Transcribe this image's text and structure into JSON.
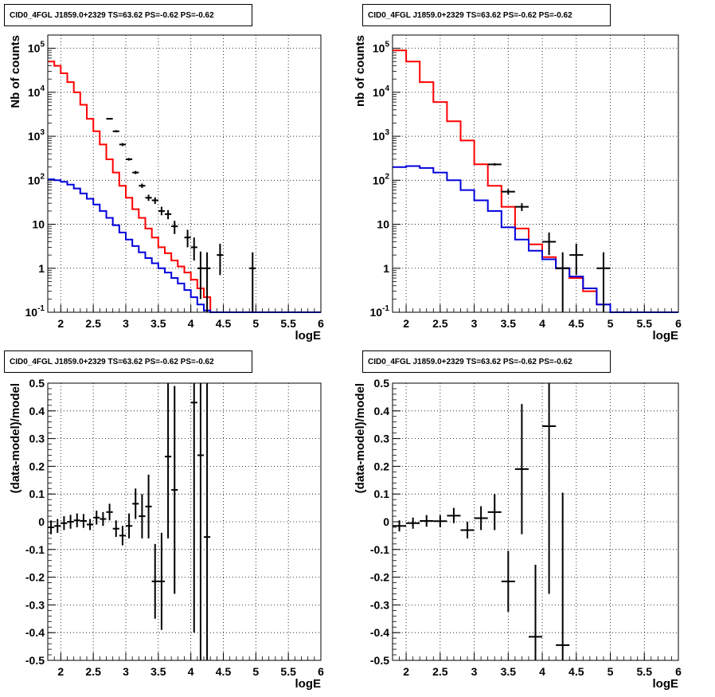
{
  "chart_data": [
    {
      "type": "step-line-errorbars",
      "title": "CID0_4FGL J1859.0+2329 TS=63.62 PS=-0.62 PS=-0.62",
      "xlabel": "logE",
      "ylabel": "Nb of counts",
      "xlim": [
        1.8,
        6
      ],
      "ylim": [
        0.1,
        200000
      ],
      "ylog": true,
      "grid": true,
      "xticks": [
        "2",
        "2.5",
        "3",
        "3.5",
        "4",
        "4.5",
        "5",
        "5.5",
        "6"
      ],
      "yticks": [
        "10^-1",
        "1",
        "10",
        "10^2",
        "10^3",
        "10^4",
        "10^5"
      ],
      "series": [
        {
          "color": "#ff0000",
          "kind": "step",
          "bin_width": 0.1,
          "x_start": 1.8,
          "values": [
            50000,
            40000,
            27000,
            17000,
            10000,
            5200,
            2500,
            1300,
            650,
            300,
            150,
            75,
            40,
            22,
            14,
            8,
            5,
            3,
            2.2,
            1.5,
            1.1,
            0.8,
            0.55,
            0.35,
            0.22,
            0.1,
            0.1,
            0.1,
            0.1,
            0.1,
            0.1,
            0.1,
            0.1,
            0.1,
            0.1,
            0.1,
            0.1,
            0.1,
            0.1,
            0.1,
            0.1,
            0.1
          ]
        },
        {
          "color": "#0000dd",
          "kind": "step",
          "bin_width": 0.1,
          "x_start": 1.8,
          "values": [
            105,
            100,
            92,
            80,
            65,
            50,
            38,
            28,
            20,
            14,
            9.5,
            6.5,
            4.5,
            3.2,
            2.3,
            1.7,
            1.3,
            1.0,
            0.8,
            0.6,
            0.45,
            0.32,
            0.22,
            0.15,
            0.11,
            0.1,
            0.1,
            0.1,
            0.1,
            0.1,
            0.1,
            0.1,
            0.1,
            0.1,
            0.1,
            0.1,
            0.1,
            0.1,
            0.1,
            0.1,
            0.1,
            0.1
          ]
        },
        {
          "color": "#000000",
          "kind": "errorbar",
          "half_width": 0.05,
          "points": [
            {
              "x": 2.75,
              "y": 2500,
              "lo": 2400,
              "hi": 2600
            },
            {
              "x": 2.85,
              "y": 1300,
              "lo": 1230,
              "hi": 1370
            },
            {
              "x": 2.95,
              "y": 650,
              "lo": 600,
              "hi": 700
            },
            {
              "x": 3.05,
              "y": 300,
              "lo": 280,
              "hi": 320
            },
            {
              "x": 3.15,
              "y": 150,
              "lo": 138,
              "hi": 163
            },
            {
              "x": 3.25,
              "y": 75,
              "lo": 67,
              "hi": 84
            },
            {
              "x": 3.35,
              "y": 40,
              "lo": 34,
              "hi": 47
            },
            {
              "x": 3.45,
              "y": 35,
              "lo": 29,
              "hi": 41
            },
            {
              "x": 3.55,
              "y": 20,
              "lo": 16,
              "hi": 25
            },
            {
              "x": 3.65,
              "y": 17,
              "lo": 13,
              "hi": 21
            },
            {
              "x": 3.75,
              "y": 9,
              "lo": 6,
              "hi": 12
            },
            {
              "x": 3.95,
              "y": 5,
              "lo": 3,
              "hi": 7.5
            },
            {
              "x": 4.05,
              "y": 3,
              "lo": 1.5,
              "hi": 5
            },
            {
              "x": 4.15,
              "y": 1,
              "lo": 0.2,
              "hi": 2.4
            },
            {
              "x": 4.25,
              "y": 1,
              "lo": 0.1,
              "hi": 2.3
            },
            {
              "x": 4.45,
              "y": 2,
              "lo": 0.7,
              "hi": 3.6
            },
            {
              "x": 4.95,
              "y": 1,
              "lo": 0.1,
              "hi": 2.3
            }
          ]
        }
      ]
    },
    {
      "type": "step-line-errorbars",
      "title": "CID0_4FGL J1859.0+2329 TS=63.62 PS=-0.62 PS=-0.62",
      "xlabel": "logE",
      "ylabel": "nb of counts",
      "xlim": [
        1.8,
        6
      ],
      "ylim": [
        0.1,
        200000
      ],
      "ylog": true,
      "grid": true,
      "xticks": [
        "2",
        "2.5",
        "3",
        "3.5",
        "4",
        "4.5",
        "5",
        "5.5",
        "6"
      ],
      "yticks": [
        "10^-1",
        "1",
        "10",
        "10^2",
        "10^3",
        "10^4",
        "10^5"
      ],
      "series": [
        {
          "color": "#ff0000",
          "kind": "step",
          "bin_width": 0.2,
          "x_start": 1.8,
          "values": [
            90000,
            50000,
            17000,
            6000,
            2200,
            800,
            230,
            75,
            25,
            8,
            3.5,
            1.8,
            1.0,
            0.6,
            0.3,
            0.15,
            0.1,
            0.1,
            0.1,
            0.1,
            0.1
          ]
        },
        {
          "color": "#0000dd",
          "kind": "step",
          "bin_width": 0.2,
          "x_start": 1.8,
          "values": [
            200,
            210,
            190,
            150,
            100,
            60,
            35,
            20,
            8.5,
            4.5,
            2.5,
            1.6,
            1.0,
            0.65,
            0.35,
            0.15,
            0.1,
            0.1,
            0.1,
            0.1,
            0.1
          ]
        },
        {
          "color": "#000000",
          "kind": "errorbar",
          "half_width": 0.1,
          "points": [
            {
              "x": 3.3,
              "y": 230,
              "lo": 215,
              "hi": 245
            },
            {
              "x": 3.5,
              "y": 55,
              "lo": 48,
              "hi": 63
            },
            {
              "x": 3.7,
              "y": 25,
              "lo": 20,
              "hi": 30
            },
            {
              "x": 4.1,
              "y": 4,
              "lo": 2,
              "hi": 6.5
            },
            {
              "x": 4.3,
              "y": 1,
              "lo": 0.1,
              "hi": 2.3
            },
            {
              "x": 4.5,
              "y": 2,
              "lo": 0.7,
              "hi": 3.6
            },
            {
              "x": 4.9,
              "y": 1,
              "lo": 0.1,
              "hi": 2.3
            }
          ]
        }
      ]
    },
    {
      "type": "errorbar",
      "title": "CID0_4FGL J1859.0+2329 TS=63.62 PS=-0.62 PS=-0.62",
      "xlabel": "logE",
      "ylabel": "(data-model)/model",
      "xlim": [
        1.8,
        6
      ],
      "ylim": [
        -0.5,
        0.5
      ],
      "ylog": false,
      "grid": true,
      "xticks": [
        "2",
        "2.5",
        "3",
        "3.5",
        "4",
        "4.5",
        "5",
        "5.5",
        "6"
      ],
      "yticks": [
        "-0.5",
        "-0.4",
        "-0.3",
        "-0.2",
        "-0.1",
        "0",
        "0.1",
        "0.2",
        "0.3",
        "0.4",
        "0.5"
      ],
      "series": [
        {
          "color": "#000000",
          "kind": "errorbar",
          "half_width": 0.05,
          "points": [
            {
              "x": 1.85,
              "y": -0.02,
              "lo": -0.045,
              "hi": 0.005
            },
            {
              "x": 1.95,
              "y": -0.015,
              "lo": -0.04,
              "hi": 0.01
            },
            {
              "x": 2.05,
              "y": -0.005,
              "lo": -0.03,
              "hi": 0.02
            },
            {
              "x": 2.15,
              "y": 0.0,
              "lo": -0.025,
              "hi": 0.025
            },
            {
              "x": 2.25,
              "y": 0.005,
              "lo": -0.02,
              "hi": 0.03
            },
            {
              "x": 2.35,
              "y": 0.003,
              "lo": -0.022,
              "hi": 0.028
            },
            {
              "x": 2.45,
              "y": -0.01,
              "lo": -0.03,
              "hi": 0.01
            },
            {
              "x": 2.55,
              "y": 0.015,
              "lo": -0.01,
              "hi": 0.04
            },
            {
              "x": 2.65,
              "y": 0.01,
              "lo": -0.015,
              "hi": 0.035
            },
            {
              "x": 2.75,
              "y": 0.035,
              "lo": 0.005,
              "hi": 0.065
            },
            {
              "x": 2.85,
              "y": -0.025,
              "lo": -0.055,
              "hi": 0.005
            },
            {
              "x": 2.95,
              "y": -0.05,
              "lo": -0.085,
              "hi": -0.015
            },
            {
              "x": 3.05,
              "y": -0.015,
              "lo": -0.06,
              "hi": 0.03
            },
            {
              "x": 3.15,
              "y": 0.065,
              "lo": 0.01,
              "hi": 0.12
            },
            {
              "x": 3.25,
              "y": 0.02,
              "lo": -0.06,
              "hi": 0.1
            },
            {
              "x": 3.35,
              "y": 0.055,
              "lo": -0.06,
              "hi": 0.17
            },
            {
              "x": 3.45,
              "y": -0.215,
              "lo": -0.35,
              "hi": -0.08
            },
            {
              "x": 3.55,
              "y": -0.215,
              "lo": -0.39,
              "hi": -0.04
            },
            {
              "x": 3.65,
              "y": 0.235,
              "lo": -0.06,
              "hi": 0.53
            },
            {
              "x": 3.75,
              "y": 0.115,
              "lo": -0.26,
              "hi": 0.49
            },
            {
              "x": 4.05,
              "y": 0.43,
              "lo": -0.4,
              "hi": 0.55
            },
            {
              "x": 4.15,
              "y": 0.24,
              "lo": -0.55,
              "hi": 0.55
            },
            {
              "x": 4.25,
              "y": -0.055,
              "lo": -0.55,
              "hi": 0.55
            }
          ]
        }
      ]
    },
    {
      "type": "errorbar",
      "title": "CID0_4FGL J1859.0+2329 TS=63.62 PS=-0.62 PS=-0.62",
      "xlabel": "logE",
      "ylabel": "(data-model)/model",
      "xlim": [
        1.8,
        6
      ],
      "ylim": [
        -0.5,
        0.5
      ],
      "ylog": false,
      "grid": true,
      "xticks": [
        "2",
        "2.5",
        "3",
        "3.5",
        "4",
        "4.5",
        "5",
        "5.5",
        "6"
      ],
      "yticks": [
        "-0.5",
        "-0.4",
        "-0.3",
        "-0.2",
        "-0.1",
        "0",
        "0.1",
        "0.2",
        "0.3",
        "0.4",
        "0.5"
      ],
      "series": [
        {
          "color": "#000000",
          "kind": "errorbar",
          "half_width": 0.1,
          "points": [
            {
              "x": 1.9,
              "y": -0.015,
              "lo": -0.035,
              "hi": 0.005
            },
            {
              "x": 2.1,
              "y": -0.005,
              "lo": -0.025,
              "hi": 0.015
            },
            {
              "x": 2.3,
              "y": 0.003,
              "lo": -0.018,
              "hi": 0.024
            },
            {
              "x": 2.5,
              "y": 0.002,
              "lo": -0.02,
              "hi": 0.024
            },
            {
              "x": 2.7,
              "y": 0.022,
              "lo": -0.005,
              "hi": 0.05
            },
            {
              "x": 2.9,
              "y": -0.03,
              "lo": -0.06,
              "hi": 0.0
            },
            {
              "x": 3.1,
              "y": 0.013,
              "lo": -0.03,
              "hi": 0.056
            },
            {
              "x": 3.3,
              "y": 0.035,
              "lo": -0.03,
              "hi": 0.1
            },
            {
              "x": 3.5,
              "y": -0.215,
              "lo": -0.325,
              "hi": -0.105
            },
            {
              "x": 3.7,
              "y": 0.19,
              "lo": -0.045,
              "hi": 0.425
            },
            {
              "x": 3.9,
              "y": -0.415,
              "lo": -0.55,
              "hi": -0.155
            },
            {
              "x": 4.1,
              "y": 0.345,
              "lo": -0.26,
              "hi": 0.55
            },
            {
              "x": 4.3,
              "y": -0.445,
              "lo": -0.55,
              "hi": 0.105
            }
          ]
        }
      ]
    }
  ]
}
